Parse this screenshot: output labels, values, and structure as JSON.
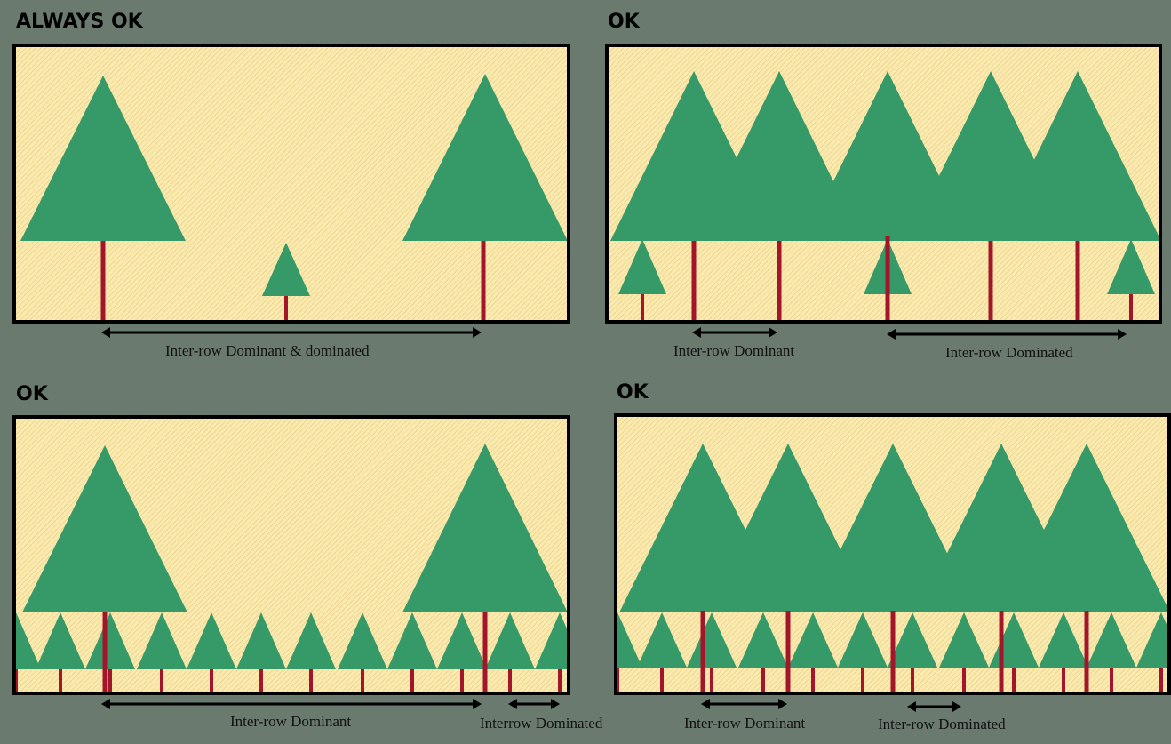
{
  "colors": {
    "background": "#6a7a6f",
    "field": "#fbeab0",
    "tree_crown": "#359a68",
    "tree_trunk": "#a3152a",
    "border": "#000000"
  },
  "panels": [
    {
      "title": "ALWAYS OK",
      "captions": [
        "Inter-row Dominant & dominated"
      ]
    },
    {
      "title": "OK",
      "captions": [
        "Inter-row Dominant",
        "Inter-row Dominated"
      ]
    },
    {
      "title": "OK",
      "captions": [
        "Inter-row Dominant",
        "Interrow Dominated"
      ]
    },
    {
      "title": "OK",
      "captions": [
        "Inter-row Dominant",
        "Inter-row Dominated"
      ]
    }
  ]
}
